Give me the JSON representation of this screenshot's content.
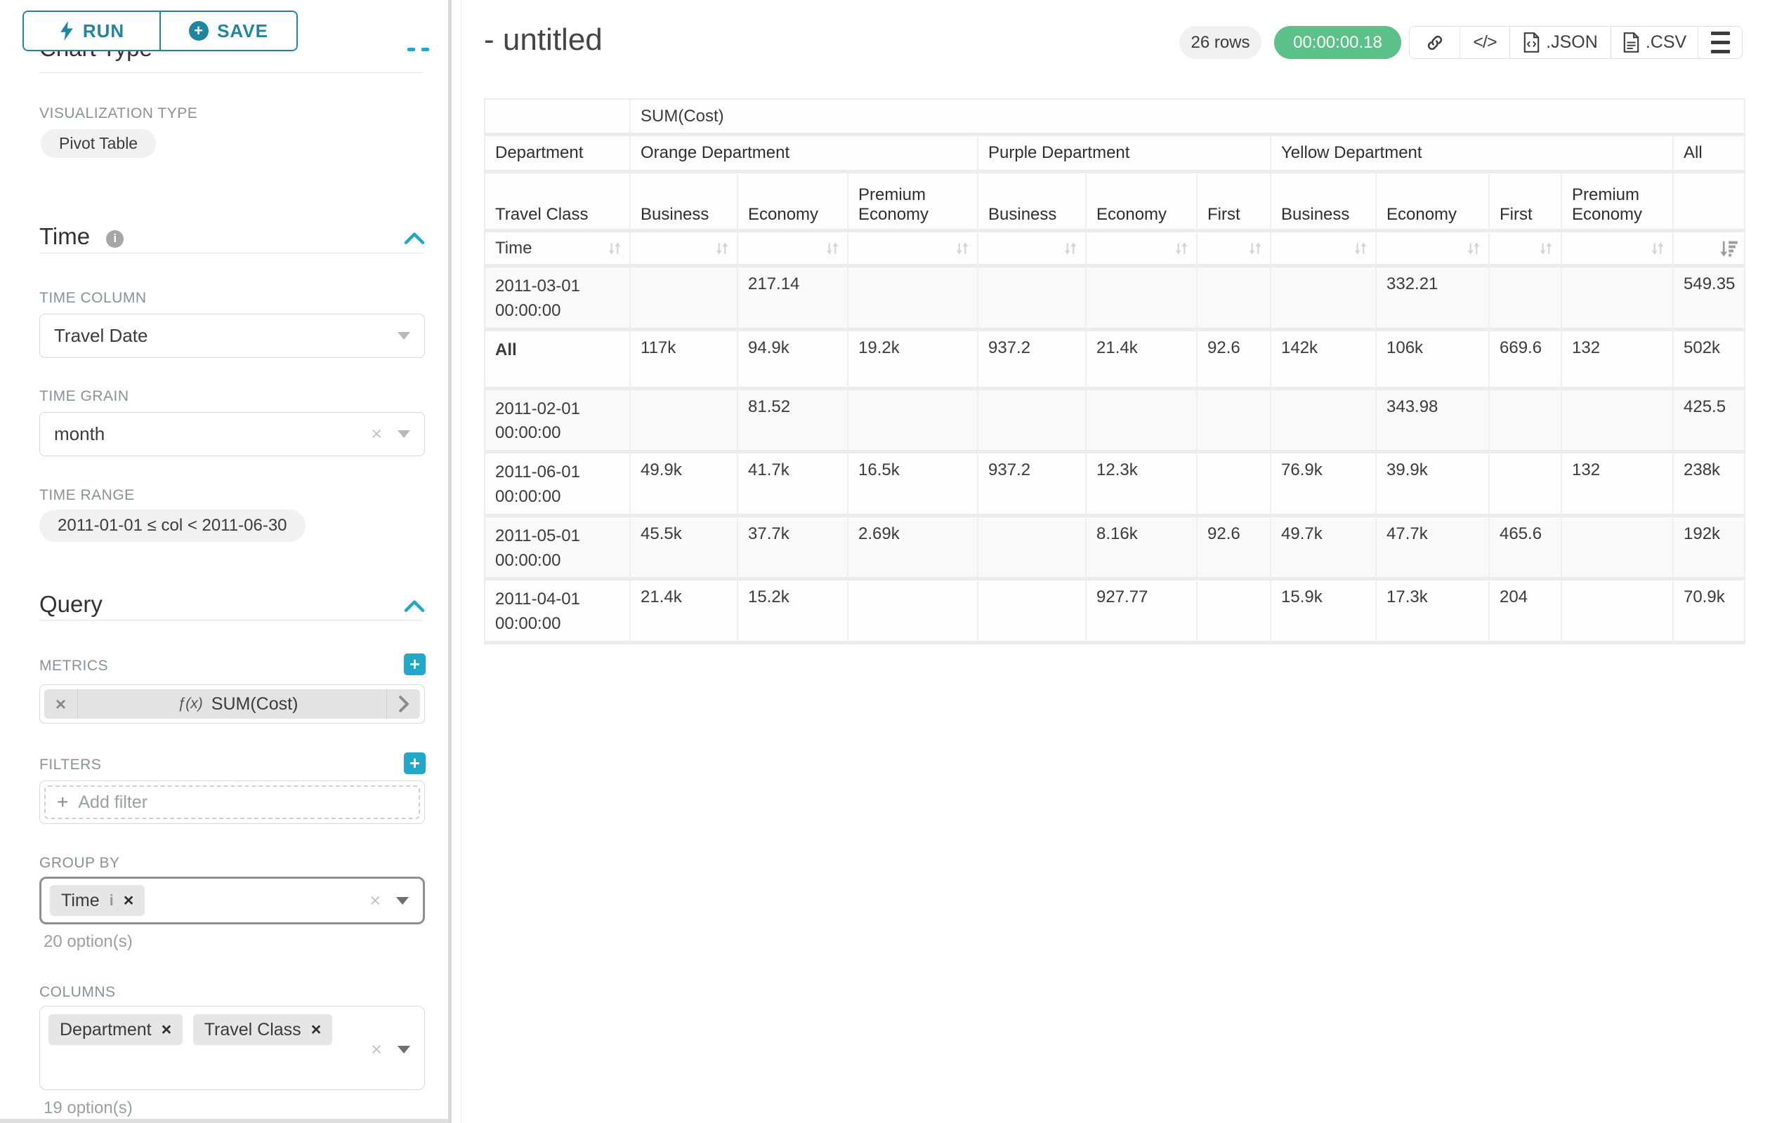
{
  "colors": {
    "primary": "#20a7c9",
    "primary_dark": "#1f85a3",
    "success": "#5ac189"
  },
  "sidebar": {
    "run_button": "RUN",
    "save_button": "SAVE",
    "section_chart_type": "Chart Type",
    "visualization_type_label": "VISUALIZATION TYPE",
    "visualization_type_value": "Pivot Table",
    "section_time": "Time",
    "time_column_label": "TIME COLUMN",
    "time_column_value": "Travel Date",
    "time_grain_label": "TIME GRAIN",
    "time_grain_value": "month",
    "time_range_label": "TIME RANGE",
    "time_range_value": "2011-01-01 ≤ col < 2011-06-30",
    "section_query": "Query",
    "metrics_label": "METRICS",
    "metric_fx": "ƒ(x)",
    "metric_value": "SUM(Cost)",
    "filters_label": "FILTERS",
    "add_filter_placeholder": "Add filter",
    "group_by_label": "GROUP BY",
    "group_by_chips": [
      "Time"
    ],
    "group_by_options": "20 option(s)",
    "columns_label": "COLUMNS",
    "columns_chips": [
      "Department",
      "Travel Class"
    ],
    "columns_options": "19 option(s)"
  },
  "header": {
    "title": "- untitled",
    "rows_badge": "26 rows",
    "duration_badge": "00:00:00.18",
    "json_button": ".JSON",
    "csv_button": ".CSV"
  },
  "chart_data": {
    "type": "table",
    "metric_header": "SUM(Cost)",
    "col_axis_labels": [
      "Department",
      "Travel Class"
    ],
    "row_axis_label": "Time",
    "column_groups": [
      {
        "label": "Orange Department",
        "columns": [
          "Business",
          "Economy",
          "Premium Economy"
        ]
      },
      {
        "label": "Purple Department",
        "columns": [
          "Business",
          "Economy",
          "First"
        ]
      },
      {
        "label": "Yellow Department",
        "columns": [
          "Business",
          "Economy",
          "First",
          "Premium Economy"
        ]
      },
      {
        "label": "All",
        "columns": [
          ""
        ]
      }
    ],
    "rows": [
      {
        "label": "2011-03-01 00:00:00",
        "values": [
          "",
          "217.14",
          "",
          "",
          "",
          "",
          "",
          "332.21",
          "",
          "",
          "549.35"
        ]
      },
      {
        "label": "All",
        "values": [
          "117k",
          "94.9k",
          "19.2k",
          "937.2",
          "21.4k",
          "92.6",
          "142k",
          "106k",
          "669.6",
          "132",
          "502k"
        ]
      },
      {
        "label": "2011-02-01 00:00:00",
        "values": [
          "",
          "81.52",
          "",
          "",
          "",
          "",
          "",
          "343.98",
          "",
          "",
          "425.5"
        ]
      },
      {
        "label": "2011-06-01 00:00:00",
        "values": [
          "49.9k",
          "41.7k",
          "16.5k",
          "937.2",
          "12.3k",
          "",
          "76.9k",
          "39.9k",
          "",
          "132",
          "238k"
        ]
      },
      {
        "label": "2011-05-01 00:00:00",
        "values": [
          "45.5k",
          "37.7k",
          "2.69k",
          "",
          "8.16k",
          "92.6",
          "49.7k",
          "47.7k",
          "465.6",
          "",
          "192k"
        ]
      },
      {
        "label": "2011-04-01 00:00:00",
        "values": [
          "21.4k",
          "15.2k",
          "",
          "",
          "927.77",
          "",
          "15.9k",
          "17.3k",
          "204",
          "",
          "70.9k"
        ]
      }
    ],
    "sort": {
      "column": "All",
      "direction": "desc"
    }
  }
}
